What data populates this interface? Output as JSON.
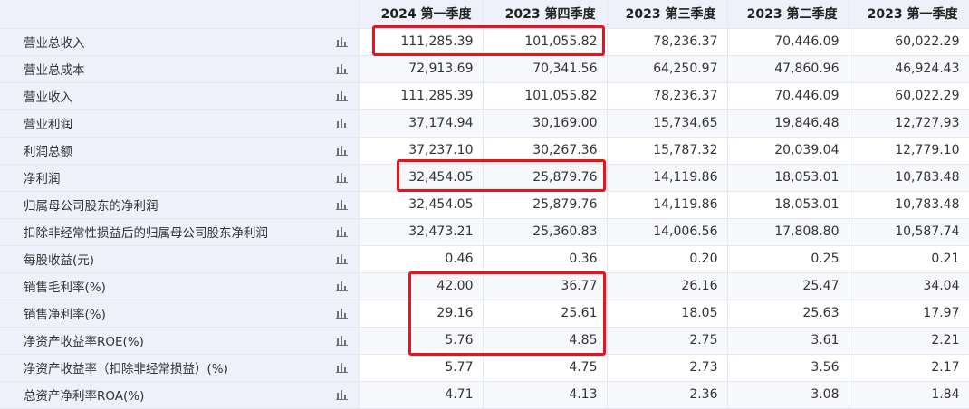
{
  "table": {
    "columns": [
      "2024 第一季度",
      "2023 第四季度",
      "2023 第三季度",
      "2023 第二季度",
      "2023 第一季度"
    ],
    "rows": [
      {
        "label": "营业总收入",
        "values": [
          "111,285.39",
          "101,055.82",
          "78,236.37",
          "70,446.09",
          "60,022.29"
        ]
      },
      {
        "label": "营业总成本",
        "values": [
          "72,913.69",
          "70,341.56",
          "64,250.97",
          "47,860.96",
          "46,924.43"
        ]
      },
      {
        "label": "营业收入",
        "values": [
          "111,285.39",
          "101,055.82",
          "78,236.37",
          "70,446.09",
          "60,022.29"
        ]
      },
      {
        "label": "营业利润",
        "values": [
          "37,174.94",
          "30,169.00",
          "15,734.65",
          "19,846.48",
          "12,727.93"
        ]
      },
      {
        "label": "利润总额",
        "values": [
          "37,237.10",
          "30,267.36",
          "15,787.32",
          "20,039.04",
          "12,779.10"
        ]
      },
      {
        "label": "净利润",
        "values": [
          "32,454.05",
          "25,879.76",
          "14,119.86",
          "18,053.01",
          "10,783.48"
        ]
      },
      {
        "label": "归属母公司股东的净利润",
        "values": [
          "32,454.05",
          "25,879.76",
          "14,119.86",
          "18,053.01",
          "10,783.48"
        ]
      },
      {
        "label": "扣除非经常性损益后的归属母公司股东净利润",
        "values": [
          "32,473.21",
          "25,360.83",
          "14,006.56",
          "17,808.80",
          "10,587.74"
        ]
      },
      {
        "label": "每股收益(元)",
        "values": [
          "0.46",
          "0.36",
          "0.20",
          "0.25",
          "0.21"
        ]
      },
      {
        "label": "销售毛利率(%)",
        "values": [
          "42.00",
          "36.77",
          "26.16",
          "25.47",
          "34.04"
        ]
      },
      {
        "label": "销售净利率(%)",
        "values": [
          "29.16",
          "25.61",
          "18.05",
          "25.63",
          "17.97"
        ]
      },
      {
        "label": "净资产收益率ROE(%)",
        "values": [
          "5.76",
          "4.85",
          "2.75",
          "3.61",
          "2.21"
        ]
      },
      {
        "label": "净资产收益率（扣除非经常损益）(%)",
        "values": [
          "5.77",
          "4.75",
          "2.73",
          "3.56",
          "2.17"
        ]
      },
      {
        "label": "总资产净利率ROA(%)",
        "values": [
          "4.71",
          "4.13",
          "2.36",
          "3.08",
          "1.84"
        ]
      }
    ]
  },
  "colors": {
    "highlight": "#e8141b",
    "header_bg": "#eef0fa",
    "icon": "#6b6f80"
  },
  "icons": {
    "row_action": "bar-chart-icon"
  }
}
